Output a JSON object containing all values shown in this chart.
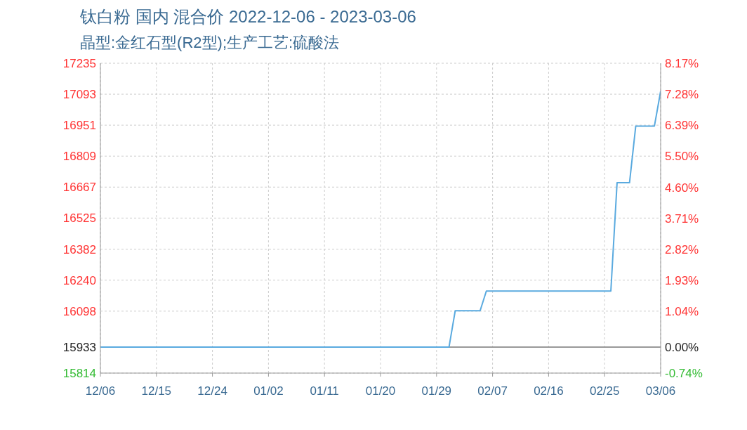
{
  "chart_data": {
    "type": "line",
    "title": "钛白粉 国内 混合价 2022-12-06 - 2023-03-06",
    "subtitle": "晶型:金红石型(R2型);生产工艺:硫酸法",
    "x": [
      "2022-12-06",
      "2023-01-31",
      "2023-02-01",
      "2023-02-05",
      "2023-02-06",
      "2023-02-26",
      "2023-02-27",
      "2023-03-01",
      "2023-03-02",
      "2023-03-05",
      "2023-03-06"
    ],
    "series": [
      {
        "color": "#5aaadf",
        "values": [
          15933,
          15933,
          16100,
          16100,
          16190,
          16190,
          16687,
          16687,
          16947,
          16947,
          17107
        ]
      }
    ],
    "xlim": [
      "2022-12-06",
      "2023-03-06"
    ],
    "xticks": [
      {
        "value": "2022-12-06",
        "label": "12/06"
      },
      {
        "value": "2022-12-15",
        "label": "12/15"
      },
      {
        "value": "2022-12-24",
        "label": "12/24"
      },
      {
        "value": "2023-01-02",
        "label": "01/02"
      },
      {
        "value": "2023-01-11",
        "label": "01/11"
      },
      {
        "value": "2023-01-20",
        "label": "01/20"
      },
      {
        "value": "2023-01-29",
        "label": "01/29"
      },
      {
        "value": "2023-02-07",
        "label": "02/07"
      },
      {
        "value": "2023-02-16",
        "label": "02/16"
      },
      {
        "value": "2023-02-25",
        "label": "02/25"
      },
      {
        "value": "2023-03-06",
        "label": "03/06"
      }
    ],
    "ylim": [
      15814,
      17235
    ],
    "yticks": [
      15814,
      15933,
      16098,
      16240,
      16382,
      16525,
      16667,
      16809,
      16951,
      17093,
      17235
    ],
    "y2lim": [
      -0.74,
      8.17
    ],
    "y2ticks": [
      {
        "value": -0.74,
        "label": "-0.74%"
      },
      {
        "value": 0,
        "label": "0.00%"
      },
      {
        "value": 1.04,
        "label": "1.04%"
      },
      {
        "value": 1.93,
        "label": "1.93%"
      },
      {
        "value": 2.82,
        "label": "2.82%"
      },
      {
        "value": 3.71,
        "label": "3.71%"
      },
      {
        "value": 4.6,
        "label": "4.60%"
      },
      {
        "value": 5.5,
        "label": "5.50%"
      },
      {
        "value": 6.39,
        "label": "6.39%"
      },
      {
        "value": 7.28,
        "label": "7.28%"
      },
      {
        "value": 8.17,
        "label": "8.17%"
      }
    ],
    "ref_lines": [
      {
        "axis": "y",
        "value": 15933,
        "color": "#999999"
      }
    ],
    "grid": true,
    "marker": "none",
    "line_style": "solid"
  }
}
